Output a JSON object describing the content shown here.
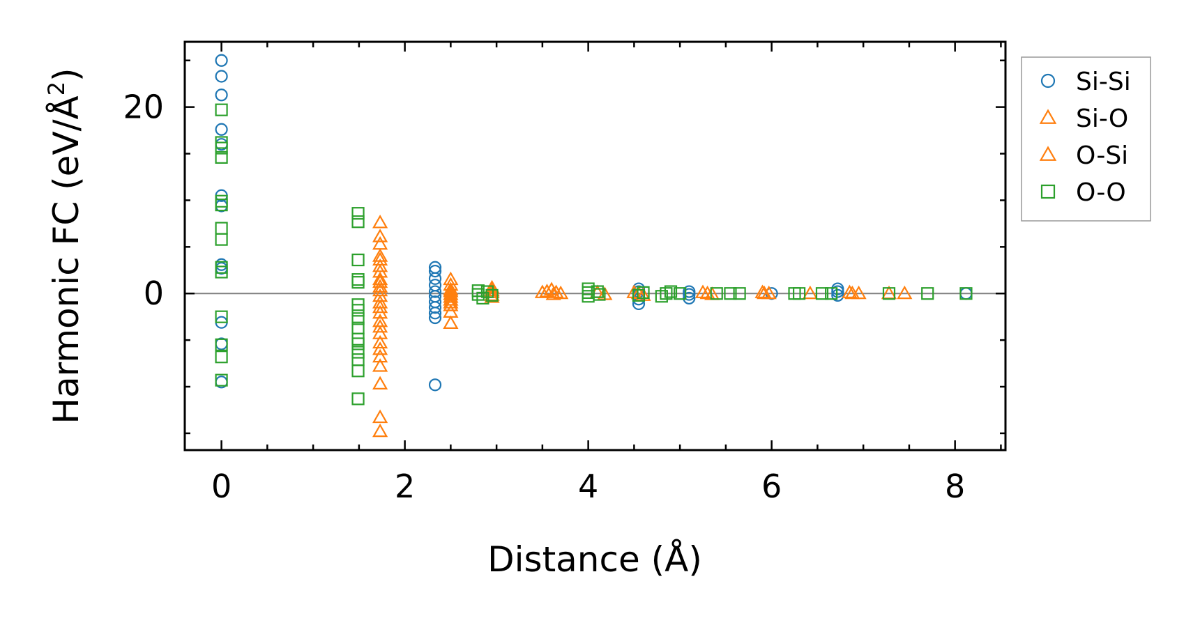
{
  "chart_data": {
    "type": "scatter",
    "title": "",
    "xlabel": "Distance (Å)",
    "ylabel": "Harmonic FC (eV/Å",
    "ylabel_sup": "2",
    "ylabel_close": ")",
    "xlim": [
      -0.4,
      8.55
    ],
    "ylim": [
      -16.8,
      27
    ],
    "xticks": [
      0,
      2,
      4,
      6,
      8
    ],
    "xtick_labels": [
      "0",
      "2",
      "4",
      "6",
      "8"
    ],
    "yticks": [
      0,
      20
    ],
    "ytick_labels": [
      "0",
      "20"
    ],
    "minor_x_step": 0.5,
    "minor_y_step": 5,
    "zero_line": true,
    "grid": false,
    "legend_position": "outside-right-top",
    "series": [
      {
        "name": "Si-Si",
        "marker": "circle",
        "color": "#1f77b4",
        "filled": false,
        "points": [
          [
            0,
            25
          ],
          [
            0,
            23.3
          ],
          [
            0,
            21.3
          ],
          [
            0,
            17.6
          ],
          [
            0,
            16
          ],
          [
            0,
            10.5
          ],
          [
            0,
            9.4
          ],
          [
            0,
            3.1
          ],
          [
            0,
            2.7
          ],
          [
            0,
            -3.1
          ],
          [
            0,
            -5.4
          ],
          [
            0,
            -9.5
          ],
          [
            2.33,
            2.8
          ],
          [
            2.33,
            2.4
          ],
          [
            2.33,
            1.6
          ],
          [
            2.33,
            0.9
          ],
          [
            2.33,
            0.2
          ],
          [
            2.33,
            -0.3
          ],
          [
            2.33,
            -0.9
          ],
          [
            2.33,
            -1.5
          ],
          [
            2.33,
            -2.1
          ],
          [
            2.33,
            -2.6
          ],
          [
            2.33,
            -9.8
          ],
          [
            4.55,
            0.5
          ],
          [
            4.55,
            0.2
          ],
          [
            4.55,
            -0.2
          ],
          [
            4.55,
            -0.6
          ],
          [
            4.55,
            -1.1
          ],
          [
            5.1,
            0.2
          ],
          [
            5.1,
            -0.1
          ],
          [
            5.1,
            -0.5
          ],
          [
            6.0,
            0.0
          ],
          [
            6.72,
            0.5
          ],
          [
            6.72,
            0.2
          ],
          [
            6.72,
            -0.2
          ],
          [
            8.12,
            0.0
          ]
        ]
      },
      {
        "name": "Si-O",
        "marker": "triangle",
        "color": "#ff7f0e",
        "filled": false,
        "points": [
          [
            1.73,
            7.6
          ],
          [
            1.73,
            6.1
          ],
          [
            1.73,
            5.3
          ],
          [
            1.73,
            4.0
          ],
          [
            1.73,
            3.6
          ],
          [
            1.73,
            2.9
          ],
          [
            1.73,
            2.3
          ],
          [
            1.73,
            1.5
          ],
          [
            1.73,
            0.7
          ],
          [
            1.73,
            -0.3
          ],
          [
            1.73,
            -1.0
          ],
          [
            1.73,
            -2.1
          ],
          [
            1.73,
            -3.0
          ],
          [
            1.73,
            -4.3
          ],
          [
            1.73,
            -6.0
          ],
          [
            1.73,
            -6.8
          ],
          [
            1.73,
            -7.8
          ],
          [
            1.73,
            -9.7
          ],
          [
            1.73,
            -13.3
          ],
          [
            1.73,
            -14.8
          ],
          [
            2.5,
            1.5
          ],
          [
            2.5,
            0.9
          ],
          [
            2.5,
            0.4
          ],
          [
            2.5,
            -0.1
          ],
          [
            2.5,
            -0.7
          ],
          [
            2.5,
            -1.3
          ],
          [
            2.5,
            -2.0
          ],
          [
            2.5,
            -3.2
          ],
          [
            2.95,
            0.6
          ],
          [
            2.95,
            0.1
          ],
          [
            2.95,
            -0.4
          ],
          [
            3.5,
            0.1
          ],
          [
            3.6,
            0.4
          ],
          [
            3.62,
            -0.1
          ],
          [
            3.7,
            0.0
          ],
          [
            4.1,
            0.1
          ],
          [
            4.18,
            -0.1
          ],
          [
            4.5,
            0.1
          ],
          [
            4.6,
            -0.2
          ],
          [
            5.25,
            0.1
          ],
          [
            5.35,
            -0.1
          ],
          [
            5.9,
            0.1
          ],
          [
            5.97,
            0.0
          ],
          [
            6.42,
            0.0
          ],
          [
            6.85,
            0.1
          ],
          [
            6.95,
            0.0
          ],
          [
            7.28,
            0.0
          ],
          [
            7.45,
            0.0
          ]
        ]
      },
      {
        "name": "O-Si",
        "marker": "triangle",
        "color": "#ff7f0e",
        "filled": false,
        "points": [
          [
            1.73,
            1.2
          ],
          [
            1.73,
            0.3
          ],
          [
            1.73,
            -1.5
          ],
          [
            1.73,
            -3.6
          ],
          [
            1.73,
            -5.3
          ],
          [
            2.5,
            0.2
          ],
          [
            2.5,
            -0.4
          ],
          [
            2.5,
            -1.0
          ],
          [
            2.95,
            0.3
          ],
          [
            2.95,
            -0.2
          ],
          [
            3.55,
            0.2
          ],
          [
            3.65,
            0.1
          ],
          [
            4.55,
            0.0
          ],
          [
            5.3,
            0.0
          ],
          [
            5.92,
            0.0
          ],
          [
            6.88,
            0.0
          ]
        ]
      },
      {
        "name": "O-O",
        "marker": "square",
        "color": "#2ca02c",
        "filled": false,
        "points": [
          [
            0,
            19.7
          ],
          [
            0,
            16.2
          ],
          [
            0,
            15.6
          ],
          [
            0,
            14.6
          ],
          [
            0,
            9.9
          ],
          [
            0,
            9.5
          ],
          [
            0,
            7.0
          ],
          [
            0,
            5.8
          ],
          [
            0,
            2.8
          ],
          [
            0,
            2.3
          ],
          [
            0,
            -2.5
          ],
          [
            0,
            -5.5
          ],
          [
            0,
            -6.8
          ],
          [
            0,
            -9.3
          ],
          [
            1.49,
            8.6
          ],
          [
            1.49,
            7.7
          ],
          [
            1.49,
            3.6
          ],
          [
            1.49,
            1.5
          ],
          [
            1.49,
            1.2
          ],
          [
            1.49,
            -1.2
          ],
          [
            1.49,
            -1.8
          ],
          [
            1.49,
            -2.7
          ],
          [
            1.49,
            -3.7
          ],
          [
            1.49,
            -4.9
          ],
          [
            1.49,
            -5.4
          ],
          [
            1.49,
            -6.3
          ],
          [
            1.49,
            -7.1
          ],
          [
            1.49,
            -8.3
          ],
          [
            1.49,
            -11.3
          ],
          [
            2.8,
            0.3
          ],
          [
            2.8,
            -0.1
          ],
          [
            2.85,
            -0.5
          ],
          [
            2.9,
            0.2
          ],
          [
            2.95,
            -0.2
          ],
          [
            4.0,
            0.5
          ],
          [
            4.0,
            0.1
          ],
          [
            4.0,
            -0.3
          ],
          [
            4.1,
            0.2
          ],
          [
            4.12,
            -0.1
          ],
          [
            4.55,
            -0.2
          ],
          [
            4.6,
            0.1
          ],
          [
            4.8,
            -0.3
          ],
          [
            4.85,
            0.0
          ],
          [
            4.9,
            0.2
          ],
          [
            5.0,
            0.0
          ],
          [
            5.4,
            0.0
          ],
          [
            5.55,
            0.0
          ],
          [
            5.65,
            0.0
          ],
          [
            6.25,
            0.0
          ],
          [
            6.3,
            0.0
          ],
          [
            6.55,
            0.0
          ],
          [
            6.65,
            0.0
          ],
          [
            7.28,
            0.0
          ],
          [
            7.7,
            0.0
          ],
          [
            8.12,
            0.0
          ]
        ]
      }
    ]
  }
}
